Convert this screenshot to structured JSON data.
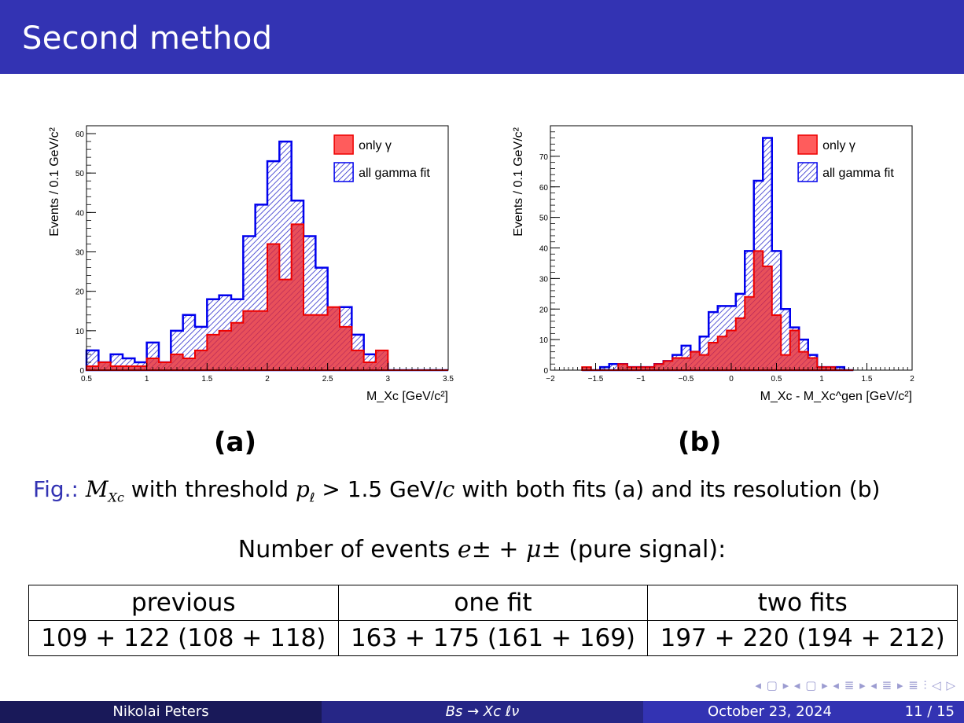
{
  "slide": {
    "title": "Second method",
    "panel_a_label": "(a)",
    "panel_b_label": "(b)",
    "caption_prefix": "Fig.:",
    "caption_var": "M",
    "caption_sub": "Xc",
    "caption_mid1": " with threshold ",
    "caption_p": "p",
    "caption_sub2": "ℓ",
    "caption_mid2": " > 1.5 GeV/",
    "caption_c": "c",
    "caption_tail": " with both fits (a) and its resolution (b)",
    "count_title_pre": "Number of events ",
    "count_e": "e",
    "count_mid": "± + ",
    "count_mu": "μ",
    "count_tail": "± (pure signal):"
  },
  "table": {
    "headers": [
      "previous",
      "one fit",
      "two fits"
    ],
    "values": [
      "109 + 122 (108 + 118)",
      "163 + 175 (161 + 169)",
      "197 + 220 (194 + 212)"
    ]
  },
  "footer": {
    "author": "Nikolai Peters",
    "topic": "Bs → Xc ℓν",
    "date": "October 23, 2024",
    "page": "11 / 15"
  },
  "nav_symbols": "◂ ▢ ▸ ◂ ▢ ▸ ◂ ≣ ▸ ◂ ≣ ▸ ≣ ⫶ ◁ ▷",
  "colors": {
    "title_bar": "#3333b3",
    "footer_dark": "#191959",
    "footer_mid": "#262686",
    "only_gamma": "#e8404a",
    "all_gamma": "#0000ee"
  },
  "chart_data": [
    {
      "type": "histogram",
      "panel": "(a)",
      "xlabel": "M_Xc  [GeV/c²]",
      "ylabel": "Events / 0.1 GeV/c²",
      "xlim": [
        0.5,
        3.5
      ],
      "ylim": [
        0,
        62
      ],
      "xticks": [
        "0.5",
        "1",
        "1.5",
        "2",
        "2.5",
        "3",
        "3.5"
      ],
      "yticks": [
        "0",
        "10",
        "20",
        "30",
        "40",
        "50",
        "60"
      ],
      "legend_position": "top-right",
      "bin_edges_start": 0.5,
      "bin_width": 0.1,
      "series": [
        {
          "name": "all gamma fit",
          "style": "hatched-blue",
          "values": [
            5,
            2,
            4,
            3,
            2,
            7,
            2,
            10,
            14,
            11,
            18,
            19,
            18,
            34,
            42,
            53,
            58,
            43,
            34,
            26,
            14,
            16,
            9,
            4,
            2,
            0,
            0,
            0,
            0,
            0
          ]
        },
        {
          "name": "only γ",
          "style": "filled-red",
          "values": [
            1,
            2,
            1,
            1,
            1,
            3,
            2,
            4,
            3,
            5,
            9,
            10,
            12,
            15,
            15,
            32,
            23,
            37,
            14,
            14,
            16,
            11,
            5,
            2,
            5,
            0,
            0,
            0,
            0,
            0
          ]
        }
      ]
    },
    {
      "type": "histogram",
      "panel": "(b)",
      "xlabel": "M_Xc - M_Xc^gen [GeV/c²]",
      "ylabel": "Events / 0.1 GeV/c²",
      "xlim": [
        -2,
        2
      ],
      "ylim": [
        0,
        80
      ],
      "xticks": [
        "−2",
        "−1.5",
        "−1",
        "−0.5",
        "0",
        "0.5",
        "1",
        "1.5",
        "2"
      ],
      "yticks": [
        "0",
        "10",
        "20",
        "30",
        "40",
        "50",
        "60",
        "70"
      ],
      "legend_position": "top-right",
      "bin_edges_start": -1.65,
      "bin_width": 0.1,
      "series": [
        {
          "name": "all gamma fit",
          "style": "hatched-blue",
          "values": [
            0,
            0,
            1,
            2,
            2,
            1,
            1,
            1,
            2,
            3,
            5,
            8,
            6,
            11,
            19,
            21,
            21,
            25,
            39,
            62,
            76,
            39,
            20,
            14,
            10,
            5,
            1,
            1,
            1,
            0
          ]
        },
        {
          "name": "only γ",
          "style": "filled-red",
          "values": [
            1,
            0,
            0,
            0,
            2,
            1,
            1,
            1,
            2,
            3,
            4,
            4,
            6,
            5,
            9,
            11,
            13,
            17,
            24,
            39,
            34,
            18,
            5,
            13,
            6,
            4,
            1,
            1,
            0,
            0
          ]
        }
      ]
    }
  ]
}
